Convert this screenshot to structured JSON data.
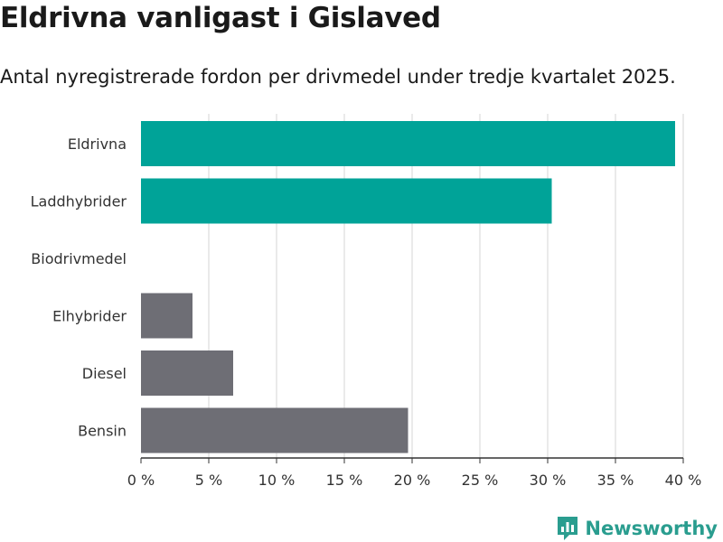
{
  "title": "Eldrivna vanligast i Gislaved",
  "subtitle": "Antal nyregistrerade fordon per drivmedel under tredje kvartalet 2025.",
  "brand": "Newsworthy",
  "colors": {
    "highlight": "#00a398",
    "other": "#6e6e75",
    "grid": "#dddddd",
    "axis": "#333333",
    "brand": "#2a9d8f"
  },
  "chart_data": {
    "type": "bar",
    "orientation": "horizontal",
    "categories": [
      "Eldrivna",
      "Laddhybrider",
      "Biodrivmedel",
      "Elhybrider",
      "Diesel",
      "Bensin"
    ],
    "values": [
      39.4,
      30.3,
      0,
      3.8,
      6.8,
      19.7
    ],
    "highlight": [
      true,
      true,
      false,
      false,
      false,
      false
    ],
    "xlim": [
      0,
      40
    ],
    "xticks": [
      "0 %",
      "5 %",
      "10 %",
      "15 %",
      "20 %",
      "25 %",
      "30 %",
      "35 %",
      "40 %"
    ],
    "grid": true
  }
}
